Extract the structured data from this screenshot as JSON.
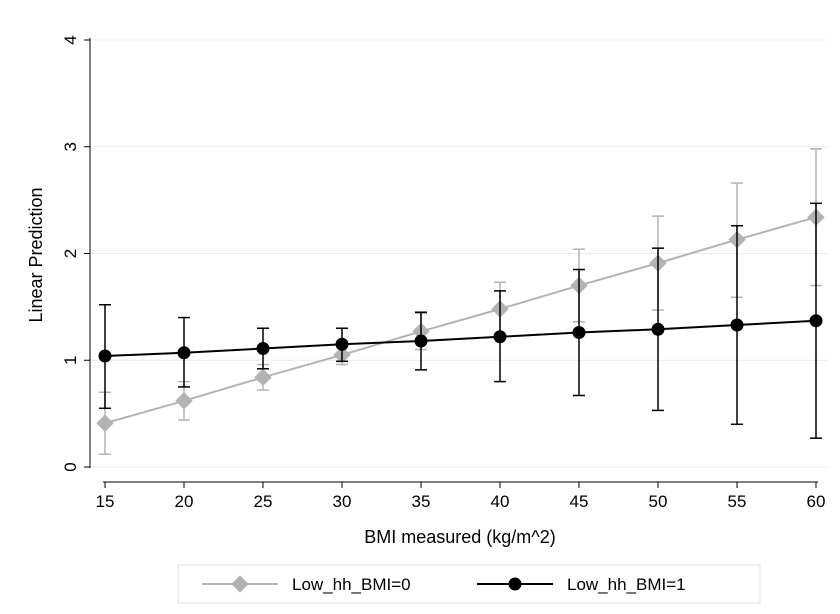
{
  "chart_data": {
    "type": "line",
    "title": "",
    "xlabel": "BMI measured (kg/m^2)",
    "ylabel": "Linear Prediction",
    "x": [
      15,
      20,
      25,
      30,
      35,
      40,
      45,
      50,
      55,
      60
    ],
    "xticks": [
      "15",
      "20",
      "25",
      "30",
      "35",
      "40",
      "45",
      "50",
      "55",
      "60"
    ],
    "yticks": [
      "0",
      "1",
      "2",
      "3",
      "4"
    ],
    "xlim": [
      15,
      60
    ],
    "ylim": [
      0,
      4
    ],
    "grid": "horizontal",
    "legend_position": "bottom",
    "error_bars": true,
    "series": [
      {
        "name": "Low_hh_BMI=0",
        "color": "#b3b3b3",
        "marker": "diamond",
        "values": [
          0.41,
          0.62,
          0.84,
          1.05,
          1.27,
          1.48,
          1.7,
          1.91,
          2.13,
          2.34
        ],
        "ci_low": [
          0.12,
          0.44,
          0.72,
          0.96,
          1.1,
          1.24,
          1.36,
          1.47,
          1.59,
          1.7
        ],
        "ci_high": [
          0.7,
          0.8,
          0.96,
          1.14,
          1.44,
          1.73,
          2.04,
          2.35,
          2.66,
          2.98
        ]
      },
      {
        "name": "Low_hh_BMI=1",
        "color": "#000000",
        "marker": "circle",
        "values": [
          1.04,
          1.07,
          1.11,
          1.15,
          1.18,
          1.22,
          1.26,
          1.29,
          1.33,
          1.37
        ],
        "ci_low": [
          0.55,
          0.75,
          0.92,
          0.99,
          0.91,
          0.8,
          0.67,
          0.53,
          0.4,
          0.27
        ],
        "ci_high": [
          1.52,
          1.4,
          1.3,
          1.3,
          1.45,
          1.65,
          1.85,
          2.05,
          2.26,
          2.47
        ]
      }
    ]
  }
}
